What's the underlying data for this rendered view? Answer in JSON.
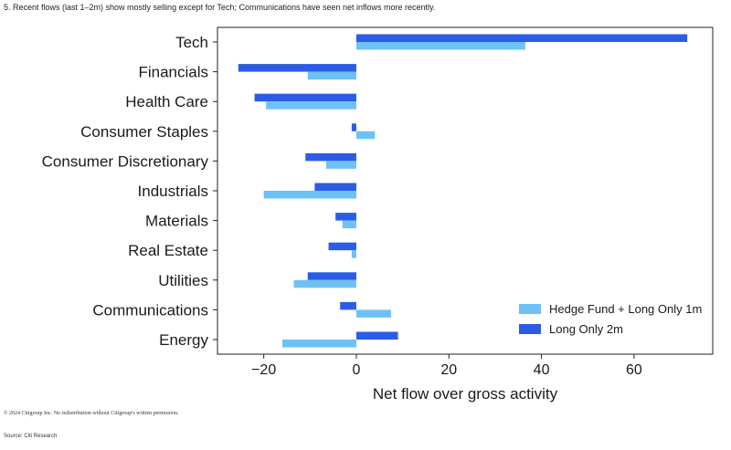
{
  "caption": "5. Recent flows (last 1–2m) show mostly selling except for Tech; Communications have seen net inflows more recently.",
  "footer": {
    "copyright": "© 2024 Citigroup Inc. No redistribution without Citigroup's written permission.",
    "source": "Source: Citi Research"
  },
  "colors": {
    "hedge_fund_long_only_1m": "#6ec1f5",
    "long_only_2m": "#2b5ce6"
  },
  "chart_data": {
    "type": "bar",
    "orientation": "horizontal",
    "title": "",
    "xlabel": "Net flow over gross activity",
    "ylabel": "",
    "xlim": [
      -30,
      77
    ],
    "xticks": [
      -20,
      0,
      20,
      40,
      60
    ],
    "xtick_labels": [
      "−20",
      "0",
      "20",
      "40",
      "60"
    ],
    "grid": false,
    "legend_position": "bottom-right",
    "categories": [
      "Tech",
      "Financials",
      "Health Care",
      "Consumer Staples",
      "Consumer Discretionary",
      "Industrials",
      "Materials",
      "Real Estate",
      "Utilities",
      "Communications",
      "Energy"
    ],
    "series": [
      {
        "name": "Hedge Fund + Long Only 1m",
        "color_key": "hedge_fund_long_only_1m",
        "values": [
          36.5,
          -10.5,
          -19.5,
          4,
          -6.5,
          -20,
          -3,
          -1,
          -13.5,
          7.5,
          -16
        ]
      },
      {
        "name": "Long Only 2m",
        "color_key": "long_only_2m",
        "values": [
          71.5,
          -25.5,
          -22,
          -1,
          -11,
          -9,
          -4.5,
          -6,
          -10.5,
          -3.5,
          9
        ]
      }
    ]
  }
}
